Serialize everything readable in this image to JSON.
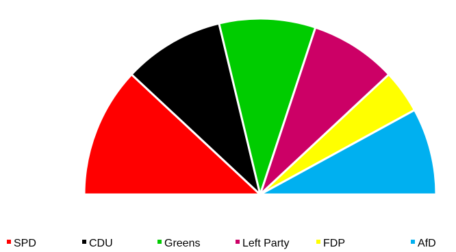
{
  "chart_data": {
    "type": "pie",
    "variant": "semicircle",
    "title": "",
    "series": [
      {
        "name": "SPD",
        "value": 27,
        "color": "#ff0000"
      },
      {
        "name": "CDU",
        "value": 21,
        "color": "#000000"
      },
      {
        "name": "Greens",
        "value": 20,
        "color": "#00cc00"
      },
      {
        "name": "Left Party",
        "value": 18,
        "color": "#cc0066"
      },
      {
        "name": "FDP",
        "value": 9,
        "color": "#ffff00"
      },
      {
        "name": "AfD",
        "value": 18,
        "color": "#00b0f0"
      }
    ],
    "legend_position": "bottom"
  }
}
